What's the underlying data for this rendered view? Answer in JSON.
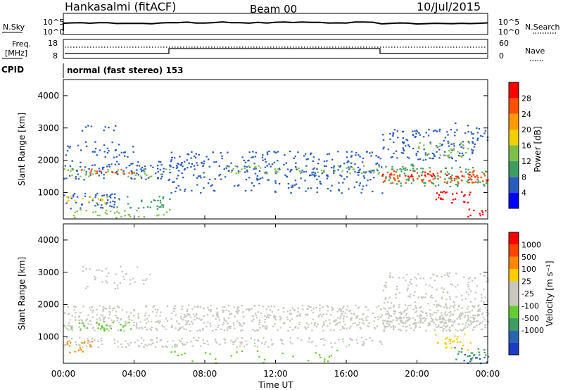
{
  "header": {
    "station": "Hankasalmi (fitACF)",
    "beam": "Beam 00",
    "date": "10/Jul/2015"
  },
  "noise_panel": {
    "left_label": "N.Sky",
    "left_ticks": [
      "10^5",
      "10^0"
    ],
    "right_ticks": [
      "10^5",
      "10^0"
    ],
    "right_label": "N.Search"
  },
  "freq_panel": {
    "left_label_line1": "Freq.",
    "left_label_line2": "[MHz]",
    "left_ticks": [
      "18",
      "8"
    ],
    "right_ticks": [
      "60",
      "0"
    ],
    "right_label": "Nave"
  },
  "cpid_panel": {
    "label": "CPID",
    "mode_text": "normal (fast stereo) 153"
  },
  "time_axis": {
    "title": "Time UT",
    "ticks": [
      "00:00",
      "04:00",
      "08:00",
      "12:00",
      "16:00",
      "20:00",
      "00:00"
    ]
  },
  "chart_data": [
    {
      "type": "heatmap",
      "name": "power",
      "xlabel": "Time UT",
      "ylabel": "Slant Range [km]",
      "y_ticks": [
        "1000",
        "2000",
        "3000",
        "4000"
      ],
      "xlim_hours": [
        0,
        24
      ],
      "ylim_km": [
        180,
        4500
      ],
      "colorbar": {
        "label": "Power [dB]",
        "ticks": [
          "4",
          "8",
          "12",
          "16",
          "20",
          "24",
          "28"
        ],
        "colors": [
          "#0000ff",
          "#2a5cc0",
          "#3e9e62",
          "#7dbf4a",
          "#f0d000",
          "#ff9900",
          "#ff5000",
          "#ff0000"
        ]
      }
    },
    {
      "type": "heatmap",
      "name": "velocity",
      "xlabel": "Time UT",
      "ylabel": "Slant Range [km]",
      "y_ticks": [
        "1000",
        "2000",
        "3000",
        "4000"
      ],
      "xlim_hours": [
        0,
        24
      ],
      "ylim_km": [
        180,
        4500
      ],
      "colorbar": {
        "label": "Velocity [m s⁻¹]",
        "ticks": [
          "1000",
          "500",
          "100",
          "25",
          "-25",
          "-100",
          "-500",
          "-1000"
        ],
        "colors": [
          "#1a3cc8",
          "#2a66b0",
          "#3e9e62",
          "#66cc33",
          "#c8c8c0",
          "#c8c8c0",
          "#ffcc00",
          "#ff8800",
          "#ff4400",
          "#ff0000"
        ]
      }
    }
  ]
}
